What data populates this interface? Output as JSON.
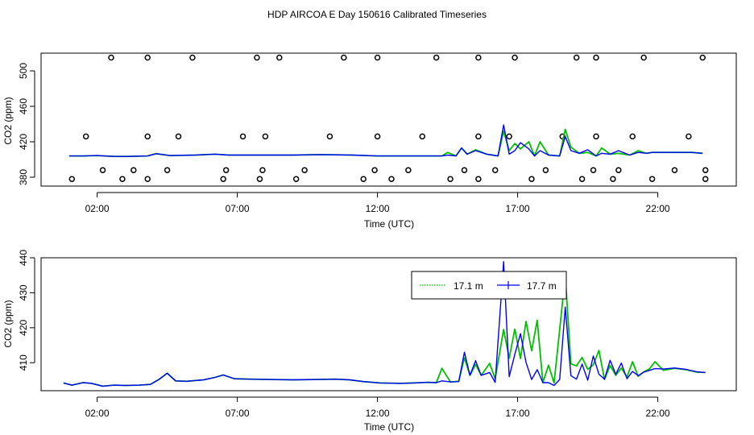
{
  "figure": {
    "title": "HDP AIRCOA E  Day 150616  Calibrated Timeseries"
  },
  "colors": {
    "series_17_1": "#00c000",
    "series_17_7": "#0000ff",
    "frame": "#000000",
    "markers": "#000000"
  },
  "chart_data": [
    {
      "type": "line",
      "panel": "top",
      "xlabel": "Time (UTC)",
      "ylabel": "CO2 (ppm)",
      "x_unit": "hours UTC",
      "xlim": [
        0,
        24.8
      ],
      "ylim": [
        370,
        520
      ],
      "x_ticks": [
        2,
        7,
        12,
        17,
        22
      ],
      "x_tick_labels": [
        "02:00",
        "07:00",
        "12:00",
        "17:00",
        "22:00"
      ],
      "y_ticks": [
        380,
        420,
        460,
        500
      ],
      "y_tick_labels": [
        "380",
        "420",
        "460",
        "500"
      ],
      "legend": "none",
      "grid": false,
      "series": [
        {
          "x": [
            1.0,
            1.5,
            2.0,
            2.6,
            3.1,
            3.8,
            4.1,
            4.6,
            5.5,
            6.2,
            6.7,
            7.5,
            8.0,
            9.0,
            10.0,
            11.1,
            12.0,
            13.0,
            13.8,
            14.1,
            14.3,
            14.5,
            14.8,
            15.0,
            15.2,
            15.5,
            15.9,
            16.1,
            16.3,
            16.5,
            16.7,
            16.9,
            17.1,
            17.4,
            17.6,
            17.8,
            18.1,
            18.5,
            18.7,
            18.9,
            19.2,
            19.5,
            19.8,
            20.0,
            20.3,
            20.6,
            21.0,
            21.3,
            21.6,
            21.8,
            22.2,
            22.7,
            23.2,
            23.6
          ],
          "y": [
            404,
            404,
            404.5,
            403.5,
            403.5,
            404,
            406.5,
            404.5,
            405,
            406,
            405,
            405,
            405,
            405,
            405.5,
            405,
            404,
            404,
            404,
            404,
            404,
            408,
            404,
            413,
            406,
            411,
            406,
            405,
            404,
            432,
            410,
            418,
            412,
            420,
            404,
            420,
            405,
            404,
            434,
            414,
            407,
            408,
            404,
            413,
            406,
            407,
            405,
            410,
            407,
            408,
            408,
            408,
            408,
            407
          ]
        },
        {
          "x": [
            1.0,
            1.5,
            2.0,
            2.6,
            3.1,
            3.8,
            4.1,
            4.6,
            5.5,
            6.2,
            6.7,
            7.5,
            8.0,
            9.0,
            10.0,
            11.1,
            12.0,
            13.0,
            13.8,
            14.1,
            14.3,
            14.5,
            14.8,
            15.0,
            15.2,
            15.5,
            15.9,
            16.1,
            16.3,
            16.5,
            16.7,
            16.9,
            17.1,
            17.4,
            17.6,
            17.8,
            18.1,
            18.5,
            18.7,
            18.9,
            19.2,
            19.5,
            19.8,
            20.0,
            20.3,
            20.6,
            21.0,
            21.3,
            21.6,
            21.8,
            22.2,
            22.7,
            23.2,
            23.6
          ],
          "y": [
            404,
            404,
            404.5,
            403.5,
            403.5,
            404,
            406.5,
            404.5,
            405,
            406,
            405,
            405,
            405,
            405,
            405.5,
            405,
            404,
            404,
            404,
            404,
            404,
            405,
            404,
            413,
            406,
            410,
            406,
            405,
            404,
            439,
            406,
            410,
            419,
            412,
            404,
            410,
            405,
            404,
            426,
            410,
            407,
            411,
            404,
            407,
            406,
            410,
            405,
            408,
            407,
            408,
            408,
            408,
            408,
            407
          ]
        }
      ],
      "markers": {
        "shape": "open-circle",
        "x": [
          1.1,
          2.2,
          1.6,
          2.5,
          2.9,
          3.3,
          3.8,
          3.8,
          3.8,
          4.5,
          4.9,
          5.4,
          6.5,
          6.6,
          7.2,
          7.7,
          7.8,
          7.9,
          8.0,
          8.5,
          9.1,
          9.4,
          10.3,
          10.8,
          11.5,
          11.9,
          12.0,
          12.0,
          12.5,
          13.1,
          13.6,
          14.1,
          14.6,
          15.1,
          15.6,
          15.6,
          15.6,
          16.2,
          16.7,
          16.9,
          17.5,
          18.0,
          18.6,
          19.1,
          19.3,
          19.7,
          19.8,
          19.8,
          20.4,
          20.6,
          21.1,
          21.5,
          21.8,
          22.6,
          23.1,
          23.6,
          23.7,
          23.7
        ]
      }
    },
    {
      "type": "line",
      "panel": "bottom",
      "xlabel": "Time (UTC)",
      "ylabel": "CO2 (ppm)",
      "x_unit": "hours UTC",
      "xlim": [
        0,
        24.8
      ],
      "ylim": [
        402,
        440
      ],
      "x_ticks": [
        2,
        7,
        12,
        17,
        22
      ],
      "x_tick_labels": [
        "02:00",
        "07:00",
        "12:00",
        "17:00",
        "22:00"
      ],
      "y_ticks": [
        410,
        420,
        430,
        440
      ],
      "y_tick_labels": [
        "410",
        "420",
        "430",
        "440"
      ],
      "legend": "top-right",
      "grid": false,
      "series": [
        {
          "name": "17.1 m",
          "x": [
            0.8,
            1.1,
            1.5,
            1.8,
            2.2,
            2.6,
            3.0,
            3.5,
            3.9,
            4.2,
            4.5,
            4.8,
            5.2,
            5.8,
            6.2,
            6.5,
            6.9,
            7.5,
            8.2,
            9.0,
            9.8,
            10.5,
            11.0,
            11.5,
            12.1,
            12.8,
            13.3,
            13.8,
            14.1,
            14.3,
            14.6,
            14.9,
            15.1,
            15.3,
            15.5,
            15.7,
            16.0,
            16.2,
            16.5,
            16.7,
            16.9,
            17.1,
            17.3,
            17.5,
            17.7,
            17.9,
            18.1,
            18.3,
            18.5,
            18.7,
            18.9,
            19.1,
            19.3,
            19.5,
            19.7,
            19.9,
            20.1,
            20.3,
            20.5,
            20.7,
            20.9,
            21.1,
            21.3,
            21.5,
            21.7,
            21.9,
            22.2,
            22.6,
            23.0,
            23.4,
            23.7
          ],
          "y": [
            404.2,
            403.6,
            404.3,
            404.1,
            403.3,
            403.6,
            403.5,
            403.6,
            403.8,
            405.2,
            407,
            404.8,
            404.7,
            405.1,
            405.8,
            406.5,
            405.4,
            405.3,
            405.2,
            405.1,
            405.2,
            405.3,
            405.1,
            404.6,
            404.2,
            404.1,
            404.2,
            404.4,
            404.3,
            408.4,
            404.5,
            404.7,
            411.4,
            406.4,
            409.5,
            406.4,
            409.8,
            405.4,
            419.5,
            411.3,
            419.6,
            411.2,
            421.8,
            413.4,
            422.1,
            404.3,
            409.3,
            404.2,
            419.5,
            434.9,
            409.7,
            409.1,
            411.5,
            408.1,
            409.4,
            413.5,
            405.2,
            409.2,
            406.4,
            408.5,
            405.9,
            410.3,
            406.1,
            407.4,
            408.2,
            410.3,
            407.8,
            408.4,
            408.0,
            407.3,
            407.2
          ]
        },
        {
          "name": "17.7 m",
          "x": [
            0.8,
            1.1,
            1.5,
            1.8,
            2.2,
            2.6,
            3.0,
            3.5,
            3.9,
            4.2,
            4.5,
            4.8,
            5.2,
            5.8,
            6.2,
            6.5,
            6.9,
            7.5,
            8.2,
            9.0,
            9.8,
            10.5,
            11.0,
            11.5,
            12.1,
            12.8,
            13.3,
            13.8,
            14.1,
            14.3,
            14.6,
            14.9,
            15.1,
            15.3,
            15.5,
            15.7,
            16.0,
            16.2,
            16.5,
            16.7,
            16.9,
            17.1,
            17.3,
            17.5,
            17.7,
            17.9,
            18.1,
            18.3,
            18.5,
            18.7,
            18.9,
            19.1,
            19.3,
            19.5,
            19.7,
            19.9,
            20.1,
            20.3,
            20.5,
            20.7,
            20.9,
            21.1,
            21.3,
            21.5,
            21.7,
            21.9,
            22.2,
            22.6,
            23.0,
            23.4,
            23.7
          ],
          "y": [
            404.2,
            403.6,
            404.3,
            404.1,
            403.3,
            403.6,
            403.5,
            403.6,
            403.8,
            405.2,
            407,
            404.8,
            404.7,
            405.1,
            405.8,
            406.5,
            405.4,
            405.3,
            405.2,
            405.1,
            405.2,
            405.3,
            405.1,
            404.6,
            404.2,
            404.1,
            404.2,
            404.4,
            404.3,
            404.8,
            404.5,
            404.6,
            413.0,
            406.4,
            410.6,
            406.4,
            407.2,
            404.4,
            438.9,
            406.0,
            412.4,
            418.3,
            410.1,
            405.2,
            408.0,
            404.3,
            404.3,
            403.5,
            405.2,
            425.9,
            406.3,
            405.3,
            409.6,
            405.0,
            411.9,
            406.7,
            405.3,
            410.7,
            406.7,
            409.9,
            405.4,
            407.5,
            406.3,
            407.3,
            407.8,
            408.3,
            408.2,
            408.5,
            408.1,
            407.4,
            407.2
          ]
        }
      ]
    }
  ]
}
